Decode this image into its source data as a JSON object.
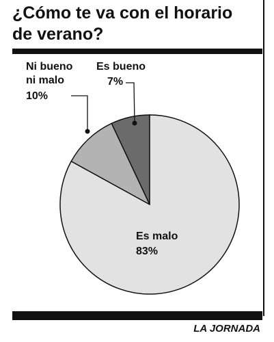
{
  "chart_data": {
    "type": "pie",
    "title": "¿Cómo te va con el horario de verano?",
    "categories": [
      "Es bueno",
      "Ni bueno ni malo",
      "Es malo"
    ],
    "values": [
      7,
      10,
      83
    ],
    "value_labels": [
      "7%",
      "10%",
      "83%"
    ],
    "colors": [
      "#6b6b6b",
      "#b3b3b3",
      "#e2e2e2"
    ],
    "source": "LA JORNADA"
  }
}
